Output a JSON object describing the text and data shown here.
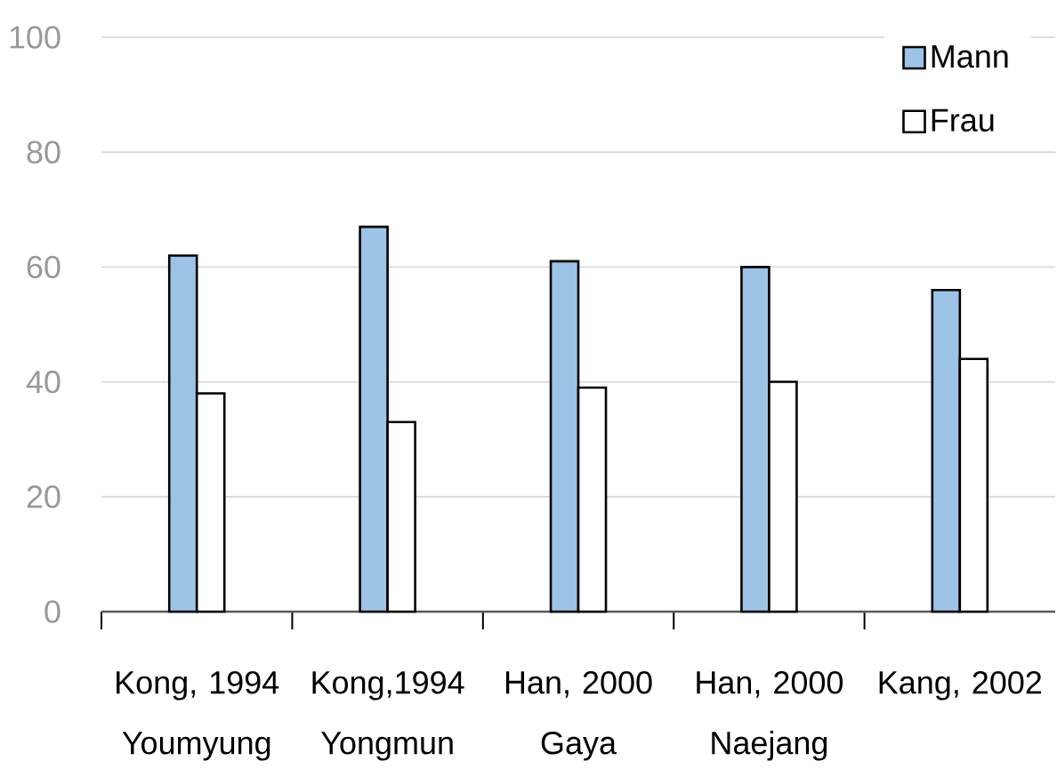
{
  "chart_data": {
    "type": "bar",
    "categories": [
      "Kong, 1994 Youmyung",
      "Kong,1994 Yongmun",
      "Han, 2000 Gaya",
      "Han, 2000 Naejang",
      "Kang, 2002"
    ],
    "series": [
      {
        "name": "Mann",
        "color": "#9dc3e6",
        "values": [
          62,
          67,
          61,
          60,
          56
        ]
      },
      {
        "name": "Frau",
        "color": "#ffffff",
        "values": [
          38,
          33,
          39,
          40,
          44
        ]
      }
    ],
    "ylim": [
      0,
      100
    ],
    "yticks": [
      0,
      20,
      40,
      60,
      80,
      100
    ],
    "grid": "y",
    "legend": "top right"
  }
}
